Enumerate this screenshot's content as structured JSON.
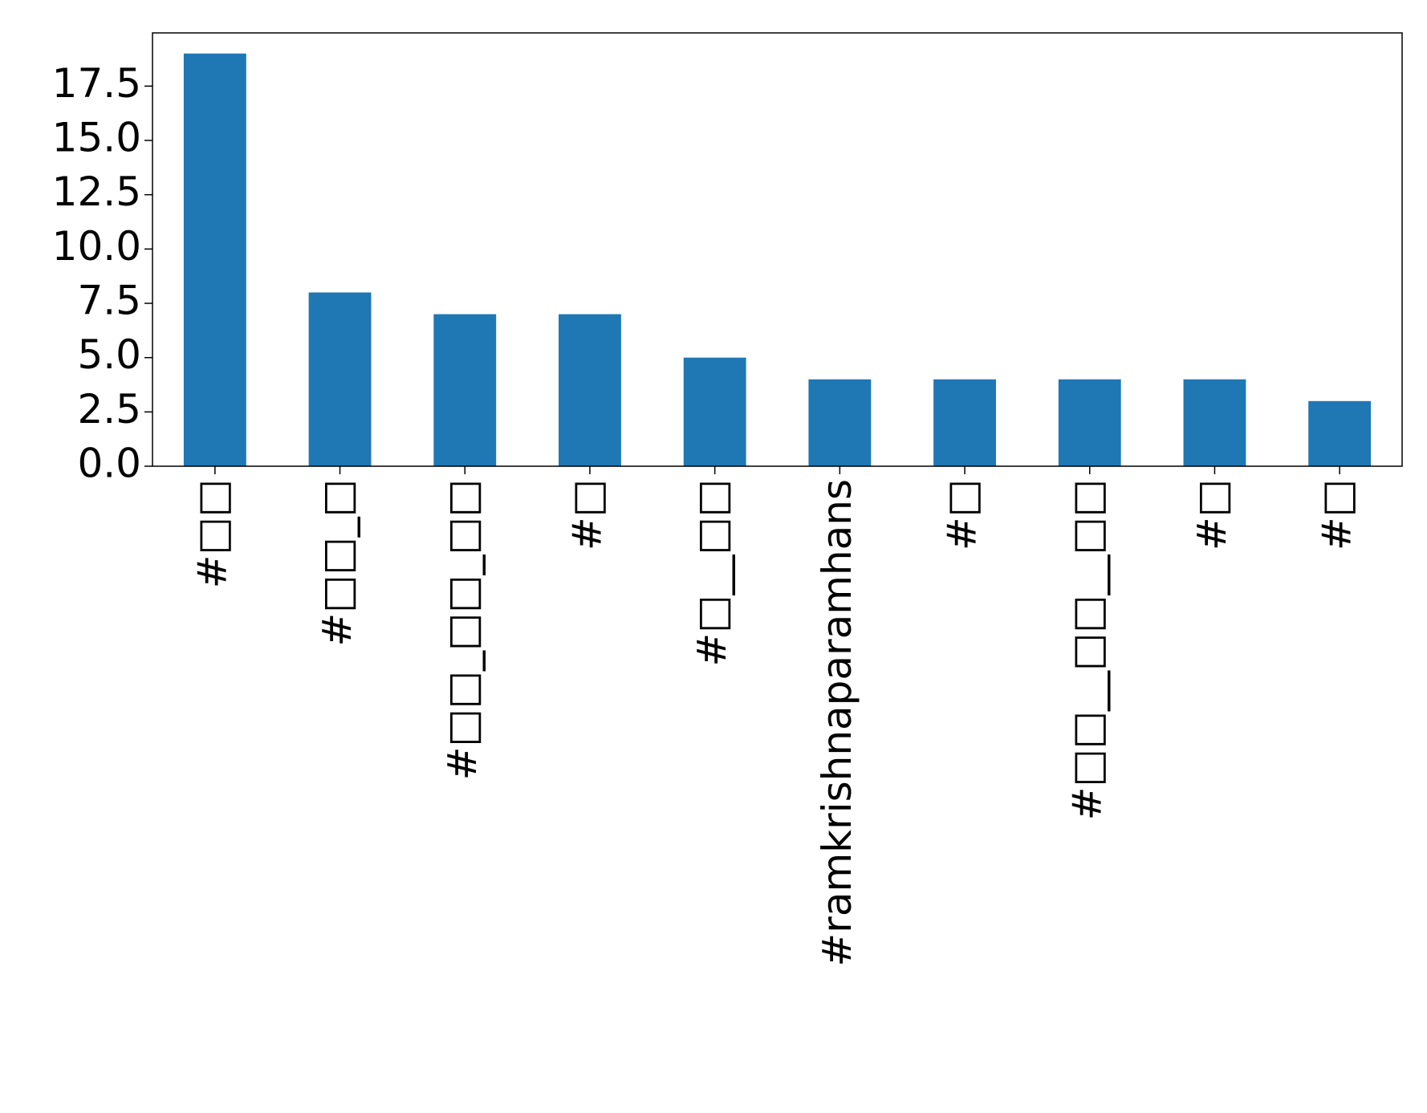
{
  "chart_data": {
    "type": "bar",
    "categories": [
      "#□□",
      "#□□_□",
      "#□□_□□_□□",
      "#□",
      "#□__□□",
      "#ramkrishnaparamhans",
      "#□",
      "#□□__□□__□□",
      "#□",
      "#□"
    ],
    "values": [
      19,
      8,
      7,
      7,
      5,
      4,
      4,
      4,
      4,
      3
    ],
    "color": "#1f77b4",
    "ylim": [
      0,
      19.95
    ],
    "yticks": [
      {
        "value": 0,
        "label": "0.0"
      },
      {
        "value": 2.5,
        "label": "2.5"
      },
      {
        "value": 5,
        "label": "5.0"
      },
      {
        "value": 7.5,
        "label": "7.5"
      },
      {
        "value": 10,
        "label": "10.0"
      },
      {
        "value": 12.5,
        "label": "12.5"
      },
      {
        "value": 15,
        "label": "15.0"
      },
      {
        "value": 17.5,
        "label": "17.5"
      }
    ]
  }
}
